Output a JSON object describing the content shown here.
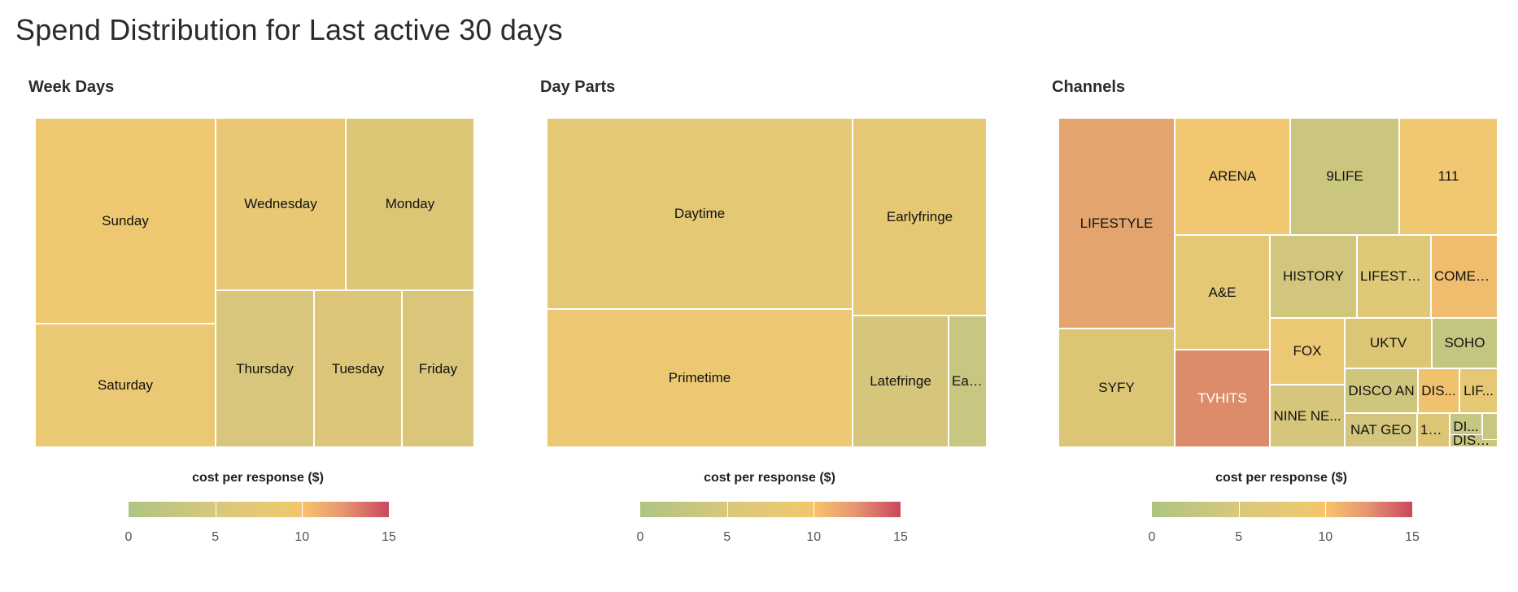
{
  "title": "Spend Distribution for Last active 30 days",
  "legend": {
    "title": "cost per response ($)",
    "ticks": [
      "0",
      "5",
      "10",
      "15"
    ]
  },
  "chart_data": [
    {
      "type": "treemap",
      "title": "Week Days",
      "color_metric": "cost per response ($)",
      "items": [
        {
          "label": "Sunday",
          "color": "#eec870"
        },
        {
          "label": "Wednesday",
          "color": "#e8c874"
        },
        {
          "label": "Monday",
          "color": "#dcc676"
        },
        {
          "label": "Saturday",
          "color": "#ebc873"
        },
        {
          "label": "Thursday",
          "color": "#d7c67c"
        },
        {
          "label": "Tuesday",
          "color": "#ddc679"
        },
        {
          "label": "Friday",
          "color": "#d9c67a"
        }
      ]
    },
    {
      "type": "treemap",
      "title": "Day Parts",
      "color_metric": "cost per response ($)",
      "items": [
        {
          "label": "Daytime",
          "color": "#e5c876"
        },
        {
          "label": "Primetime",
          "color": "#ecc873"
        },
        {
          "label": "Earlyfringe",
          "color": "#e6c874"
        },
        {
          "label": "Latefringe",
          "color": "#d6c67c"
        },
        {
          "label": "Ear...",
          "color": "#c9c682"
        }
      ]
    },
    {
      "type": "treemap",
      "title": "Channels",
      "color_metric": "cost per response ($)",
      "items": [
        {
          "label": "LIFESTYLE",
          "color": "#e3a56d"
        },
        {
          "label": "SYFY",
          "color": "#dcc676"
        },
        {
          "label": "ARENA",
          "color": "#f1c871"
        },
        {
          "label": "9LIFE",
          "color": "#cbc67e"
        },
        {
          "label": "111",
          "color": "#f0c872"
        },
        {
          "label": "A&E",
          "color": "#e5c876"
        },
        {
          "label": "HISTORY",
          "color": "#d2c67c"
        },
        {
          "label": "LIFESTYL...",
          "color": "#dfc877"
        },
        {
          "label": "COMEDY",
          "color": "#f0bd6e"
        },
        {
          "label": "TVHITS",
          "color": "#dd8c6b"
        },
        {
          "label": "FOX",
          "color": "#ebc873"
        },
        {
          "label": "UKTV",
          "color": "#dcc676"
        },
        {
          "label": "SOHO",
          "color": "#c3c67f"
        },
        {
          "label": "NINE NE...",
          "color": "#d6c67c"
        },
        {
          "label": "DISCO AN",
          "color": "#cfc67d"
        },
        {
          "label": "DIS...",
          "color": "#f0c26e"
        },
        {
          "label": "LIF...",
          "color": "#e6c874"
        },
        {
          "label": "NAT GEO",
          "color": "#d3c67c"
        },
        {
          "label": "13...",
          "color": "#dcc676"
        },
        {
          "label": "DI...",
          "color": "#c4c682"
        },
        {
          "label": "DISC...",
          "color": "#cbc67e"
        },
        {
          "label": "",
          "color": "#c9c682"
        }
      ]
    }
  ]
}
